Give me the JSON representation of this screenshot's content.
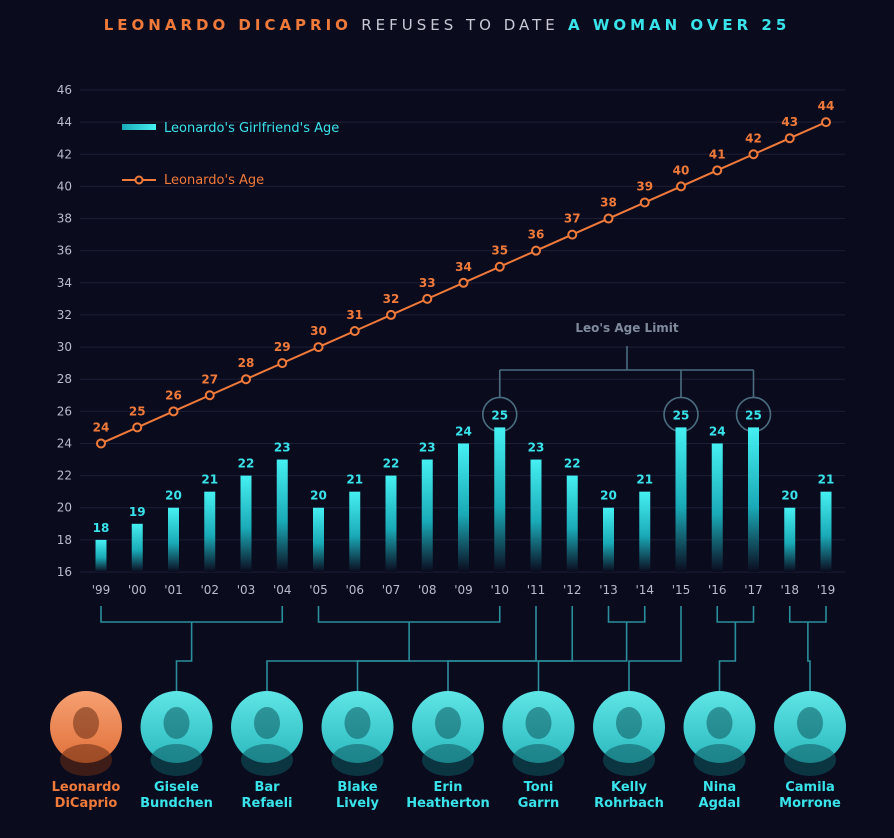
{
  "title": {
    "part1": "LEONARDO DICAPRIO",
    "part2": "REFUSES TO DATE",
    "part3": "A WOMAN OVER 25"
  },
  "colors": {
    "background": "#0b0b1e",
    "leo": "#f07a3a",
    "girlfriend": "#38e4ea",
    "connector": "#2a8f9c",
    "limit_line": "#4a6e80"
  },
  "annotation": "Leo's Age Limit",
  "chart_data": {
    "type": "bar",
    "categories": [
      "'99",
      "'00",
      "'01",
      "'02",
      "'03",
      "'04",
      "'05",
      "'06",
      "'07",
      "'08",
      "'09",
      "'10",
      "'11",
      "'12",
      "'13",
      "'14",
      "'15",
      "'16",
      "'17",
      "'18",
      "'19"
    ],
    "ylim": [
      16,
      46
    ],
    "yticks": [
      16,
      18,
      20,
      22,
      24,
      26,
      28,
      30,
      32,
      34,
      36,
      38,
      40,
      42,
      44,
      46
    ],
    "grid": true,
    "legend_position": "top-left",
    "series": [
      {
        "name": "Leonardo's Girlfriend's Age",
        "type": "bar",
        "color": "#38e4ea",
        "values": [
          18,
          19,
          20,
          21,
          22,
          23,
          20,
          21,
          22,
          23,
          24,
          25,
          23,
          22,
          20,
          21,
          25,
          24,
          25,
          20,
          21
        ]
      },
      {
        "name": "Leonardo's Age",
        "type": "line",
        "color": "#f07a3a",
        "values": [
          24,
          25,
          26,
          27,
          28,
          29,
          30,
          31,
          32,
          33,
          34,
          35,
          36,
          37,
          38,
          39,
          40,
          41,
          42,
          43,
          44
        ]
      }
    ],
    "highlighted_values": [
      "'10",
      "'15",
      "'17"
    ]
  },
  "people": [
    {
      "name_line1": "Leonardo",
      "name_line2": "DiCaprio",
      "color": "#f07a3a",
      "highlight": true,
      "years_from": 0,
      "years_to": 0
    },
    {
      "name_line1": "Gisele",
      "name_line2": "Bundchen",
      "color": "#38e4ea",
      "highlight": false,
      "years_from": 0,
      "years_to": 5
    },
    {
      "name_line1": "Bar",
      "name_line2": "Refaeli",
      "color": "#38e4ea",
      "highlight": false,
      "years_from": 6,
      "years_to": 11
    },
    {
      "name_line1": "Blake",
      "name_line2": "Lively",
      "color": "#38e4ea",
      "highlight": false,
      "years_from": 12,
      "years_to": 12
    },
    {
      "name_line1": "Erin",
      "name_line2": "Heatherton",
      "color": "#38e4ea",
      "highlight": false,
      "years_from": 13,
      "years_to": 13
    },
    {
      "name_line1": "Toni",
      "name_line2": "Garrn",
      "color": "#38e4ea",
      "highlight": false,
      "years_from": 14,
      "years_to": 15
    },
    {
      "name_line1": "Kelly",
      "name_line2": "Rohrbach",
      "color": "#38e4ea",
      "highlight": false,
      "years_from": 16,
      "years_to": 16
    },
    {
      "name_line1": "Nina",
      "name_line2": "Agdal",
      "color": "#38e4ea",
      "highlight": false,
      "years_from": 17,
      "years_to": 18
    },
    {
      "name_line1": "Camila",
      "name_line2": "Morrone",
      "color": "#38e4ea",
      "highlight": false,
      "years_from": 19,
      "years_to": 20
    }
  ]
}
